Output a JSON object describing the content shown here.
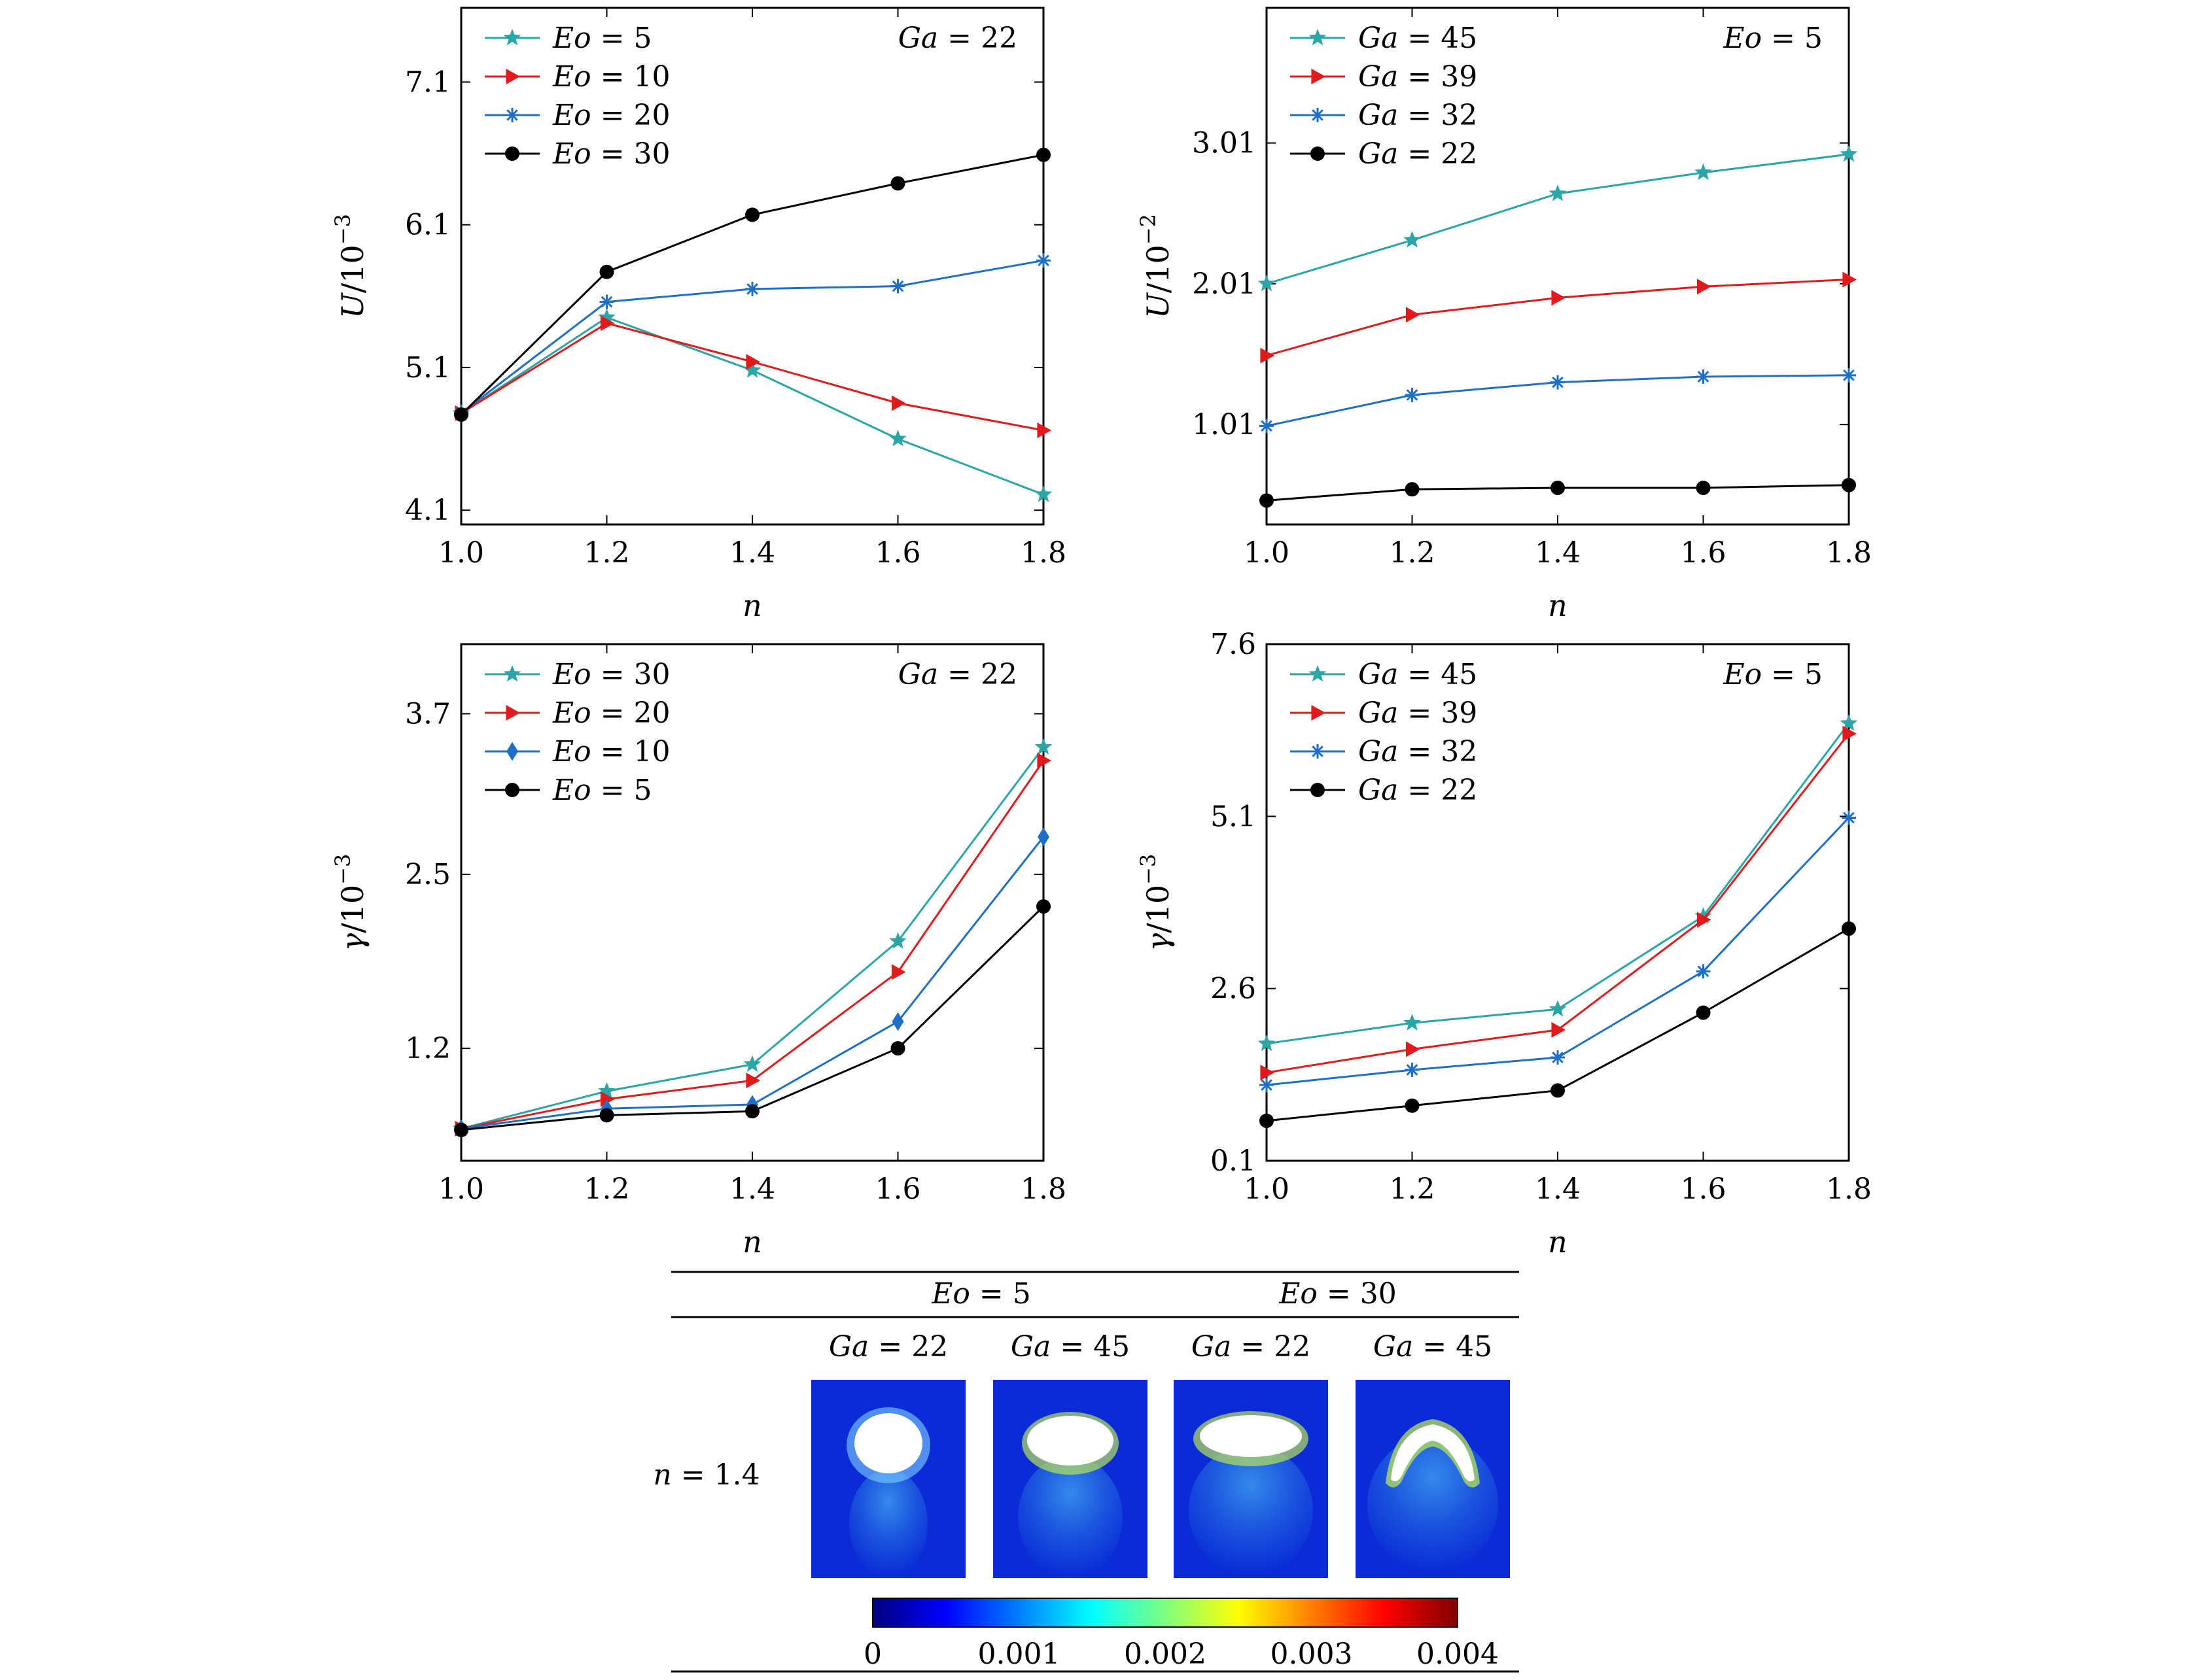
{
  "figure": {
    "table": {
      "groups": [
        {
          "eo": "Eo",
          "val": "5"
        },
        {
          "eo": "Eo",
          "val": "30"
        }
      ],
      "columns": [
        {
          "ga": "Ga",
          "val": "22"
        },
        {
          "ga": "Ga",
          "val": "45"
        },
        {
          "ga": "Ga",
          "val": "22"
        },
        {
          "ga": "Ga",
          "val": "45"
        }
      ],
      "row_label": {
        "sym": "n",
        "val": "1.4"
      },
      "colorbar": {
        "ticks": [
          "0",
          "0.001",
          "0.002",
          "0.003",
          "0.004"
        ],
        "colors": [
          "#00007f",
          "#0000ff",
          "#007fff",
          "#00ffff",
          "#7fff7f",
          "#ffff00",
          "#ff7f00",
          "#ff0000",
          "#7f0000"
        ]
      },
      "panel_colors": {
        "background": "#0a2bd6",
        "bubble": "#ffffff",
        "wake": "#2d8be8",
        "edge": "#b8e35a"
      }
    }
  },
  "chart_data": [
    {
      "type": "line",
      "xlabel": "n",
      "ylabel": "U/10",
      "ylabel_exp": "−3",
      "x": [
        1.0,
        1.2,
        1.4,
        1.6,
        1.8
      ],
      "xticks": [
        "1.0",
        "1.2",
        "1.4",
        "1.6",
        "1.8"
      ],
      "xlim": [
        1.0,
        1.8
      ],
      "yticks": [
        "4.1",
        "5.1",
        "6.1",
        "7.1"
      ],
      "ylim": [
        4.0,
        7.62
      ],
      "annotation": {
        "sym": "Ga",
        "val": "22"
      },
      "legend_location": "top-left",
      "series": [
        {
          "sym": "Eo",
          "val": "5",
          "color": "#2ba5a5",
          "marker": "star",
          "values": [
            4.78,
            5.45,
            5.08,
            4.6,
            4.21
          ]
        },
        {
          "sym": "Eo",
          "val": "10",
          "color": "#e31a1c",
          "marker": "triangle",
          "values": [
            4.78,
            5.41,
            5.14,
            4.85,
            4.66
          ]
        },
        {
          "sym": "Eo",
          "val": "20",
          "color": "#1f6fc9",
          "marker": "asterisk",
          "values": [
            4.78,
            5.56,
            5.65,
            5.67,
            5.85
          ]
        },
        {
          "sym": "Eo",
          "val": "30",
          "color": "#000000",
          "marker": "circle",
          "values": [
            4.77,
            5.77,
            6.17,
            6.39,
            6.59
          ]
        }
      ]
    },
    {
      "type": "line",
      "xlabel": "n",
      "ylabel": "U/10",
      "ylabel_exp": "−2",
      "x": [
        1.0,
        1.2,
        1.4,
        1.6,
        1.8
      ],
      "xticks": [
        "1.0",
        "1.2",
        "1.4",
        "1.6",
        "1.8"
      ],
      "xlim": [
        1.0,
        1.8
      ],
      "yticks": [
        "1.01",
        "2.01",
        "3.01"
      ],
      "ylim": [
        0.3,
        3.97
      ],
      "annotation": {
        "sym": "Eo",
        "val": "5"
      },
      "legend_location": "top-left",
      "series": [
        {
          "sym": "Ga",
          "val": "45",
          "color": "#2ba5a5",
          "marker": "star",
          "values": [
            2.01,
            2.32,
            2.65,
            2.8,
            2.93
          ]
        },
        {
          "sym": "Ga",
          "val": "39",
          "color": "#e31a1c",
          "marker": "triangle",
          "values": [
            1.5,
            1.79,
            1.91,
            1.99,
            2.04
          ]
        },
        {
          "sym": "Ga",
          "val": "32",
          "color": "#1f6fc9",
          "marker": "asterisk",
          "values": [
            1.0,
            1.22,
            1.31,
            1.35,
            1.36
          ]
        },
        {
          "sym": "Ga",
          "val": "22",
          "color": "#000000",
          "marker": "circle",
          "values": [
            0.47,
            0.55,
            0.56,
            0.56,
            0.58
          ]
        }
      ]
    },
    {
      "type": "line",
      "xlabel": "n",
      "ylabel": "γ/10",
      "ylabel_exp": "−3",
      "x": [
        1.0,
        1.2,
        1.4,
        1.6,
        1.8
      ],
      "xticks": [
        "1.0",
        "1.2",
        "1.4",
        "1.6",
        "1.8"
      ],
      "xlim": [
        1.0,
        1.8
      ],
      "yticks": [
        "1.2",
        "2.5",
        "3.7"
      ],
      "ylim": [
        0.36,
        4.22
      ],
      "annotation": {
        "sym": "Ga",
        "val": "22"
      },
      "legend_location": "top-left",
      "series": [
        {
          "sym": "Eo",
          "val": "30",
          "color": "#2ba5a5",
          "marker": "star",
          "values": [
            0.6,
            0.88,
            1.08,
            2.0,
            3.45
          ]
        },
        {
          "sym": "Eo",
          "val": "20",
          "color": "#e31a1c",
          "marker": "triangle",
          "values": [
            0.6,
            0.82,
            0.96,
            1.77,
            3.35
          ]
        },
        {
          "sym": "Eo",
          "val": "10",
          "color": "#1f6fc9",
          "marker": "diamond",
          "values": [
            0.6,
            0.75,
            0.78,
            1.4,
            2.78
          ]
        },
        {
          "sym": "Eo",
          "val": "5",
          "color": "#000000",
          "marker": "circle",
          "values": [
            0.59,
            0.7,
            0.73,
            1.2,
            2.26
          ]
        }
      ]
    },
    {
      "type": "line",
      "xlabel": "n",
      "ylabel": "γ/10",
      "ylabel_exp": "−3",
      "x": [
        1.0,
        1.2,
        1.4,
        1.6,
        1.8
      ],
      "xticks": [
        "1.0",
        "1.2",
        "1.4",
        "1.6",
        "1.8"
      ],
      "xlim": [
        1.0,
        1.8
      ],
      "yticks": [
        "0.1",
        "2.6",
        "5.1",
        "7.6"
      ],
      "ylim": [
        0.1,
        7.6
      ],
      "annotation": {
        "sym": "Eo",
        "val": "5"
      },
      "legend_location": "top-left",
      "series": [
        {
          "sym": "Ga",
          "val": "45",
          "color": "#2ba5a5",
          "marker": "star",
          "values": [
            1.8,
            2.1,
            2.3,
            3.65,
            6.45
          ]
        },
        {
          "sym": "Ga",
          "val": "39",
          "color": "#e31a1c",
          "marker": "triangle",
          "values": [
            1.38,
            1.72,
            2.0,
            3.6,
            6.3
          ]
        },
        {
          "sym": "Ga",
          "val": "32",
          "color": "#1f6fc9",
          "marker": "asterisk",
          "values": [
            1.2,
            1.42,
            1.6,
            2.85,
            5.08
          ]
        },
        {
          "sym": "Ga",
          "val": "22",
          "color": "#000000",
          "marker": "circle",
          "values": [
            0.68,
            0.9,
            1.12,
            2.25,
            3.47
          ]
        }
      ]
    }
  ]
}
